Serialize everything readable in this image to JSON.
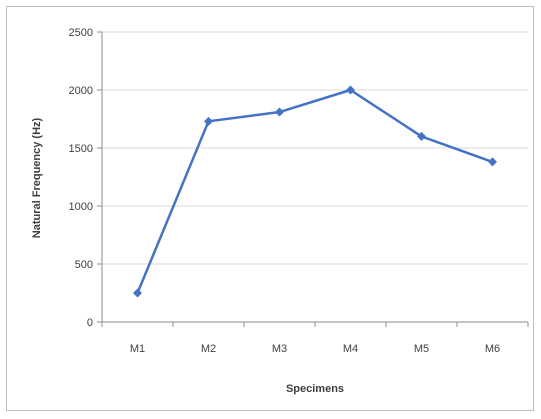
{
  "chart_data": {
    "type": "line",
    "categories": [
      "M1",
      "M2",
      "M3",
      "M4",
      "M5",
      "M6"
    ],
    "series": [
      {
        "values": [
          250,
          1730,
          1810,
          2000,
          1600,
          1380
        ]
      }
    ],
    "title": "",
    "xlabel": "Specimens",
    "ylabel": "Natural Frequency (Hz)",
    "ylim": [
      0,
      2500
    ],
    "yticks": [
      0,
      500,
      1000,
      1500,
      2000,
      2500
    ],
    "grid": true,
    "legend": "none",
    "colors": {
      "line": "#4472c4",
      "grid": "#d9d9d9",
      "axis": "#8c8c8c",
      "frame": "#bfbfbf"
    }
  }
}
